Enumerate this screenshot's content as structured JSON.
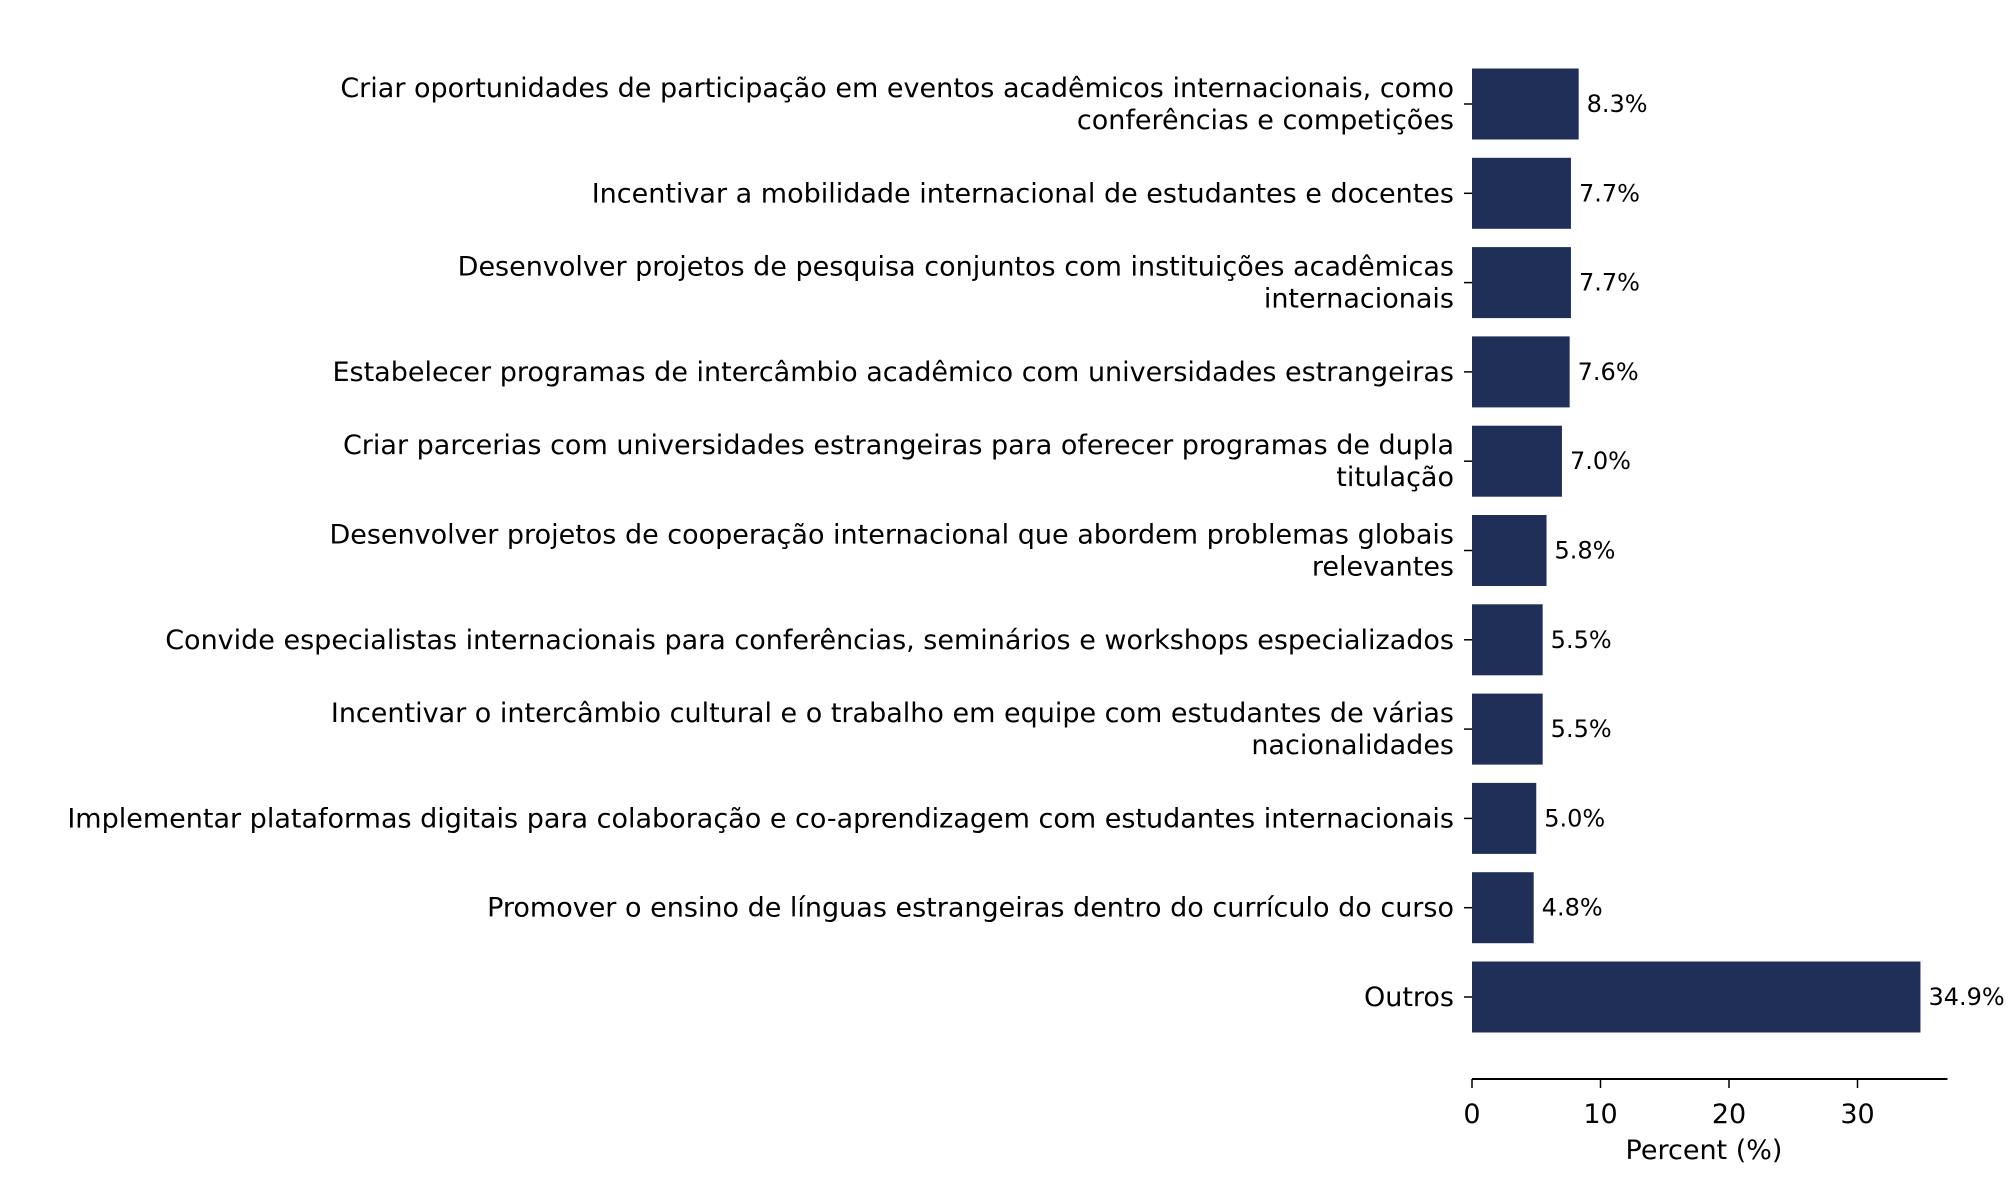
{
  "chart_data": {
    "type": "bar",
    "orientation": "horizontal",
    "title": "",
    "xlabel": "Percent (%)",
    "ylabel": "",
    "xlim": [
      0,
      37
    ],
    "xticks": [
      "0",
      "10",
      "20",
      "30"
    ],
    "grid": false,
    "bar_color": "#1f2f57",
    "categories": [
      [
        "Criar oportunidades de participação em eventos acadêmicos internacionais, como",
        "conferências e competições"
      ],
      [
        "Incentivar a mobilidade internacional de estudantes e docentes"
      ],
      [
        "Desenvolver projetos de pesquisa conjuntos com instituições acadêmicas",
        "internacionais"
      ],
      [
        "Estabelecer programas de intercâmbio acadêmico com universidades estrangeiras"
      ],
      [
        "Criar parcerias com universidades estrangeiras para oferecer programas de dupla",
        "titulação"
      ],
      [
        "Desenvolver projetos de cooperação internacional que abordem problemas globais",
        "relevantes"
      ],
      [
        "Convide especialistas internacionais para conferências, seminários e workshops especializados"
      ],
      [
        "Incentivar o intercâmbio cultural e o trabalho em equipe com estudantes de várias",
        "nacionalidades"
      ],
      [
        "Implementar plataformas digitais para colaboração e co-aprendizagem com estudantes internacionais"
      ],
      [
        "Promover o ensino de línguas estrangeiras dentro do currículo do curso"
      ],
      [
        "Outros"
      ]
    ],
    "values": [
      8.3,
      7.7,
      7.7,
      7.6,
      7.0,
      5.8,
      5.5,
      5.5,
      5.0,
      4.8,
      34.9
    ],
    "value_labels": [
      "8.3%",
      "7.7%",
      "7.7%",
      "7.6%",
      "7.0%",
      "5.8%",
      "5.5%",
      "5.5%",
      "5.0%",
      "4.8%",
      "34.9%"
    ]
  }
}
